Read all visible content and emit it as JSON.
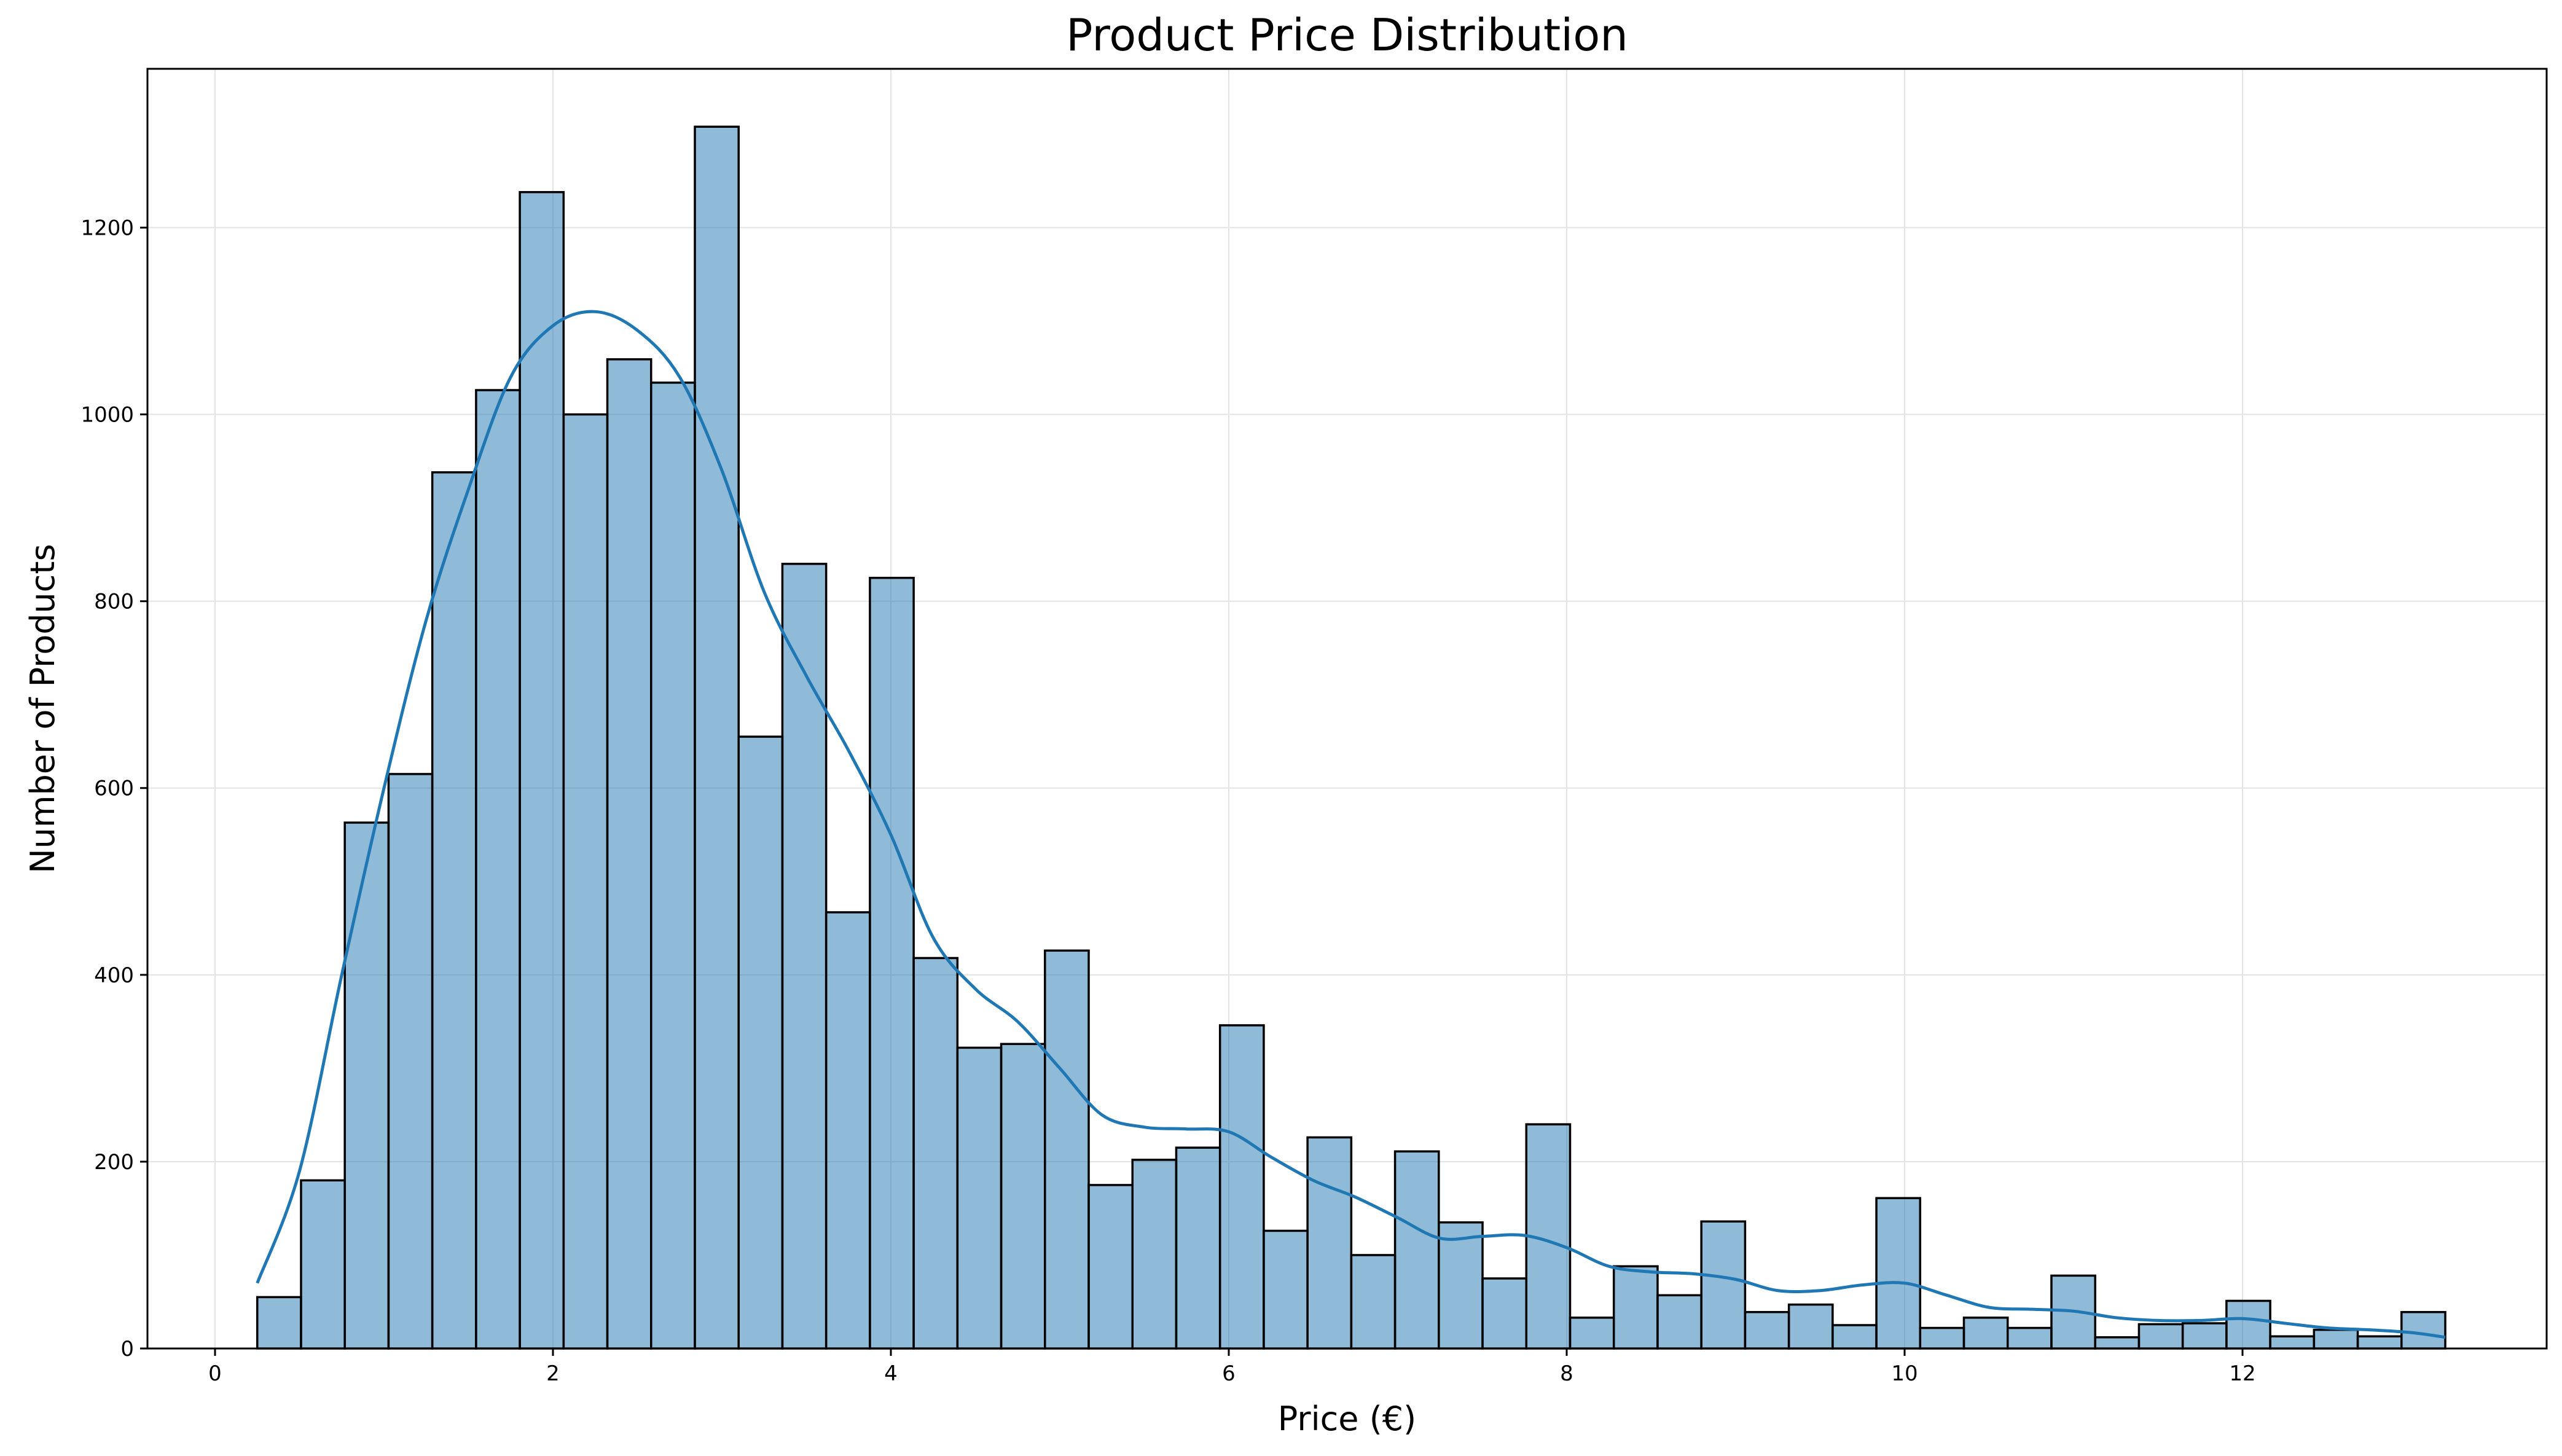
{
  "chart_data": {
    "type": "bar",
    "title": "Product Price Distribution",
    "xlabel": "Price (€)",
    "ylabel": "Number of Products",
    "xlim": [
      -0.4,
      13.8
    ],
    "ylim": [
      0,
      1370
    ],
    "xticks": [
      0,
      2,
      4,
      6,
      8,
      10,
      12
    ],
    "yticks": [
      0,
      200,
      400,
      600,
      800,
      1000,
      1200
    ],
    "grid": true,
    "bar_color": "#1f77b4",
    "kde_color": "#1f77b4",
    "bin_start": 0.25,
    "bin_width": 0.259,
    "counts": [
      55,
      180,
      563,
      615,
      938,
      1026,
      1238,
      1000,
      1059,
      1034,
      1308,
      655,
      840,
      467,
      825,
      418,
      322,
      326,
      426,
      175,
      202,
      215,
      346,
      126,
      226,
      100,
      211,
      135,
      75,
      240,
      33,
      88,
      57,
      136,
      39,
      47,
      25,
      161,
      22,
      33,
      22,
      78,
      12,
      26,
      27,
      51,
      13,
      20,
      13,
      39
    ],
    "kde": {
      "x": [
        0.25,
        0.5,
        0.75,
        1.0,
        1.25,
        1.5,
        1.75,
        2.0,
        2.25,
        2.5,
        2.75,
        3.0,
        3.25,
        3.5,
        3.75,
        4.0,
        4.25,
        4.5,
        4.75,
        5.0,
        5.25,
        5.5,
        5.75,
        6.0,
        6.25,
        6.5,
        6.75,
        7.0,
        7.25,
        7.5,
        7.75,
        8.0,
        8.25,
        8.5,
        8.75,
        9.0,
        9.25,
        9.5,
        9.75,
        10.0,
        10.25,
        10.5,
        10.75,
        11.0,
        11.25,
        11.5,
        11.75,
        12.0,
        12.25,
        12.5,
        12.75,
        13.0,
        13.2
      ],
      "y": [
        70,
        190,
        400,
        600,
        780,
        920,
        1040,
        1095,
        1110,
        1090,
        1040,
        940,
        810,
        720,
        640,
        550,
        440,
        385,
        350,
        300,
        250,
        237,
        235,
        232,
        205,
        180,
        162,
        140,
        118,
        120,
        121,
        108,
        88,
        82,
        80,
        74,
        62,
        62,
        68,
        70,
        57,
        44,
        42,
        40,
        33,
        30,
        30,
        32,
        27,
        22,
        20,
        17,
        12
      ]
    }
  }
}
